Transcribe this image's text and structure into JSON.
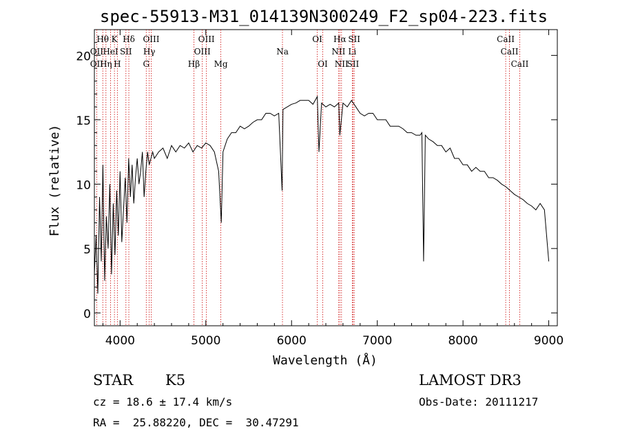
{
  "chart_data": {
    "type": "line",
    "title": "spec-55913-M31_014139N300249_F2_sp04-223.fits",
    "xlabel": "Wavelength (Å)",
    "ylabel": "Flux (relative)",
    "xlim": [
      3700,
      9100
    ],
    "ylim": [
      -1,
      22
    ],
    "xticks": [
      4000,
      5000,
      6000,
      7000,
      8000,
      9000
    ],
    "yticks": [
      0,
      5,
      10,
      15,
      20
    ],
    "series": [
      {
        "name": "spectrum",
        "x": [
          3700,
          3720,
          3740,
          3760,
          3780,
          3800,
          3820,
          3840,
          3860,
          3880,
          3900,
          3920,
          3940,
          3960,
          3980,
          4000,
          4020,
          4040,
          4060,
          4080,
          4100,
          4120,
          4140,
          4160,
          4180,
          4200,
          4220,
          4240,
          4260,
          4280,
          4300,
          4320,
          4340,
          4360,
          4380,
          4400,
          4450,
          4500,
          4550,
          4600,
          4650,
          4700,
          4750,
          4800,
          4850,
          4900,
          4950,
          5000,
          5050,
          5100,
          5150,
          5180,
          5200,
          5250,
          5300,
          5350,
          5400,
          5450,
          5500,
          5550,
          5600,
          5650,
          5700,
          5750,
          5800,
          5850,
          5890,
          5900,
          5950,
          6000,
          6050,
          6100,
          6150,
          6200,
          6250,
          6300,
          6320,
          6350,
          6400,
          6450,
          6500,
          6550,
          6563,
          6600,
          6650,
          6700,
          6750,
          6800,
          6850,
          6900,
          6950,
          7000,
          7050,
          7100,
          7150,
          7200,
          7250,
          7300,
          7350,
          7400,
          7450,
          7500,
          7520,
          7540,
          7560,
          7600,
          7650,
          7700,
          7750,
          7800,
          7850,
          7900,
          7950,
          8000,
          8050,
          8100,
          8150,
          8200,
          8250,
          8300,
          8350,
          8400,
          8450,
          8500,
          8550,
          8600,
          8650,
          8700,
          8750,
          8800,
          8850,
          8900,
          8950,
          9000
        ],
        "y": [
          3.0,
          6.0,
          1.5,
          9.0,
          4.0,
          11.5,
          2.5,
          7.5,
          5.0,
          10.0,
          3.0,
          8.5,
          4.5,
          9.5,
          6.0,
          11.0,
          5.5,
          8.0,
          10.5,
          7.0,
          12.0,
          9.0,
          11.5,
          8.5,
          10.5,
          12.0,
          10.0,
          11.0,
          12.5,
          9.0,
          11.0,
          12.5,
          11.5,
          12.0,
          12.5,
          12.0,
          12.5,
          12.8,
          12.0,
          13.0,
          12.5,
          13.0,
          12.8,
          13.2,
          12.5,
          13.0,
          12.8,
          13.2,
          13.0,
          12.5,
          11.0,
          7.0,
          12.5,
          13.5,
          14.0,
          14.0,
          14.5,
          14.3,
          14.5,
          14.8,
          15.0,
          15.0,
          15.5,
          15.5,
          15.3,
          15.5,
          9.5,
          15.8,
          16.0,
          16.2,
          16.3,
          16.5,
          16.5,
          16.5,
          16.2,
          16.8,
          12.5,
          16.3,
          16.0,
          16.2,
          16.0,
          16.3,
          13.8,
          16.3,
          16.0,
          16.5,
          16.0,
          15.5,
          15.3,
          15.5,
          15.5,
          15.0,
          15.0,
          15.0,
          14.5,
          14.5,
          14.5,
          14.3,
          14.0,
          14.0,
          13.8,
          13.8,
          14.0,
          4.0,
          13.8,
          13.5,
          13.3,
          13.0,
          13.0,
          12.5,
          12.8,
          12.0,
          12.0,
          11.5,
          11.5,
          11.0,
          11.3,
          11.0,
          11.0,
          10.5,
          10.5,
          10.3,
          10.0,
          9.8,
          9.5,
          9.2,
          9.0,
          8.8,
          8.5,
          8.3,
          8.0,
          8.5,
          8.0,
          4.0
        ]
      }
    ],
    "lines": [
      {
        "label": "Hθ",
        "wave": 3798
      },
      {
        "label": "OII",
        "wave": 3727
      },
      {
        "label": "Hη",
        "wave": 3835
      },
      {
        "label": "HeI",
        "wave": 3889
      },
      {
        "label": "K",
        "wave": 3934
      },
      {
        "label": "H",
        "wave": 3968
      },
      {
        "label": "SII",
        "wave": 4068
      },
      {
        "label": "Hδ",
        "wave": 4102
      },
      {
        "label": "OIII",
        "wave": 4363
      },
      {
        "label": "Hγ",
        "wave": 4340
      },
      {
        "label": "G",
        "wave": 4305
      },
      {
        "label": "Hβ",
        "wave": 4861
      },
      {
        "label": "OIII",
        "wave": 4959
      },
      {
        "label": "OIII",
        "wave": 5007
      },
      {
        "label": "Mg",
        "wave": 5175
      },
      {
        "label": "Na",
        "wave": 5894
      },
      {
        "label": "OI",
        "wave": 6300
      },
      {
        "label": "OI",
        "wave": 6364
      },
      {
        "label": "Hα",
        "wave": 6563
      },
      {
        "label": "NII",
        "wave": 6548
      },
      {
        "label": "NII",
        "wave": 6583
      },
      {
        "label": "SII",
        "wave": 6717
      },
      {
        "label": "Li",
        "wave": 6708
      },
      {
        "label": "SII",
        "wave": 6731
      },
      {
        "label": "CaII",
        "wave": 8498
      },
      {
        "label": "CaII",
        "wave": 8542
      },
      {
        "label": "CaII",
        "wave": 8662
      }
    ],
    "line_labels": [
      {
        "text": "Hθ",
        "row": 0,
        "anchor": 3798
      },
      {
        "text": "K",
        "row": 0,
        "anchor": 3934
      },
      {
        "text": "Hδ",
        "row": 0,
        "anchor": 4102
      },
      {
        "text": "OIII",
        "row": 0,
        "anchor": 4363
      },
      {
        "text": "OIII",
        "row": 0,
        "anchor": 5007
      },
      {
        "text": "OI",
        "row": 0,
        "anchor": 6300
      },
      {
        "text": "Hα",
        "row": 0,
        "anchor": 6563
      },
      {
        "text": "SII",
        "row": 0,
        "anchor": 6731
      },
      {
        "text": "CaII",
        "row": 0,
        "anchor": 8498
      },
      {
        "text": "OII",
        "row": 1,
        "anchor": 3727
      },
      {
        "text": "HeI",
        "row": 1,
        "anchor": 3889
      },
      {
        "text": "SII",
        "row": 1,
        "anchor": 4068
      },
      {
        "text": "Hγ",
        "row": 1,
        "anchor": 4340
      },
      {
        "text": "OIII",
        "row": 1,
        "anchor": 4959
      },
      {
        "text": "Na",
        "row": 1,
        "anchor": 5894
      },
      {
        "text": "NII",
        "row": 1,
        "anchor": 6548
      },
      {
        "text": "Li",
        "row": 1,
        "anchor": 6708
      },
      {
        "text": "CaII",
        "row": 1,
        "anchor": 8542
      },
      {
        "text": "OII",
        "row": 2,
        "anchor": 3727
      },
      {
        "text": "Hη",
        "row": 2,
        "anchor": 3835
      },
      {
        "text": "H",
        "row": 2,
        "anchor": 3968
      },
      {
        "text": "G",
        "row": 2,
        "anchor": 4305
      },
      {
        "text": "Hβ",
        "row": 2,
        "anchor": 4861
      },
      {
        "text": "Mg",
        "row": 2,
        "anchor": 5175
      },
      {
        "text": "OI",
        "row": 2,
        "anchor": 6364
      },
      {
        "text": "NII",
        "row": 2,
        "anchor": 6583
      },
      {
        "text": "SII",
        "row": 2,
        "anchor": 6717
      },
      {
        "text": "CaII",
        "row": 2,
        "anchor": 8662
      }
    ]
  },
  "info": {
    "object_class": "STAR",
    "subclass": "K5",
    "survey": "LAMOST DR3",
    "cz": "cz = 18.6 ± 17.4 km/s",
    "obs_date": "Obs-Date: 20111217",
    "radec": "RA =  25.88220, DEC =  30.47291"
  },
  "colors": {
    "line": "#000000",
    "marker": "#cc0000",
    "background": "#ffffff"
  }
}
